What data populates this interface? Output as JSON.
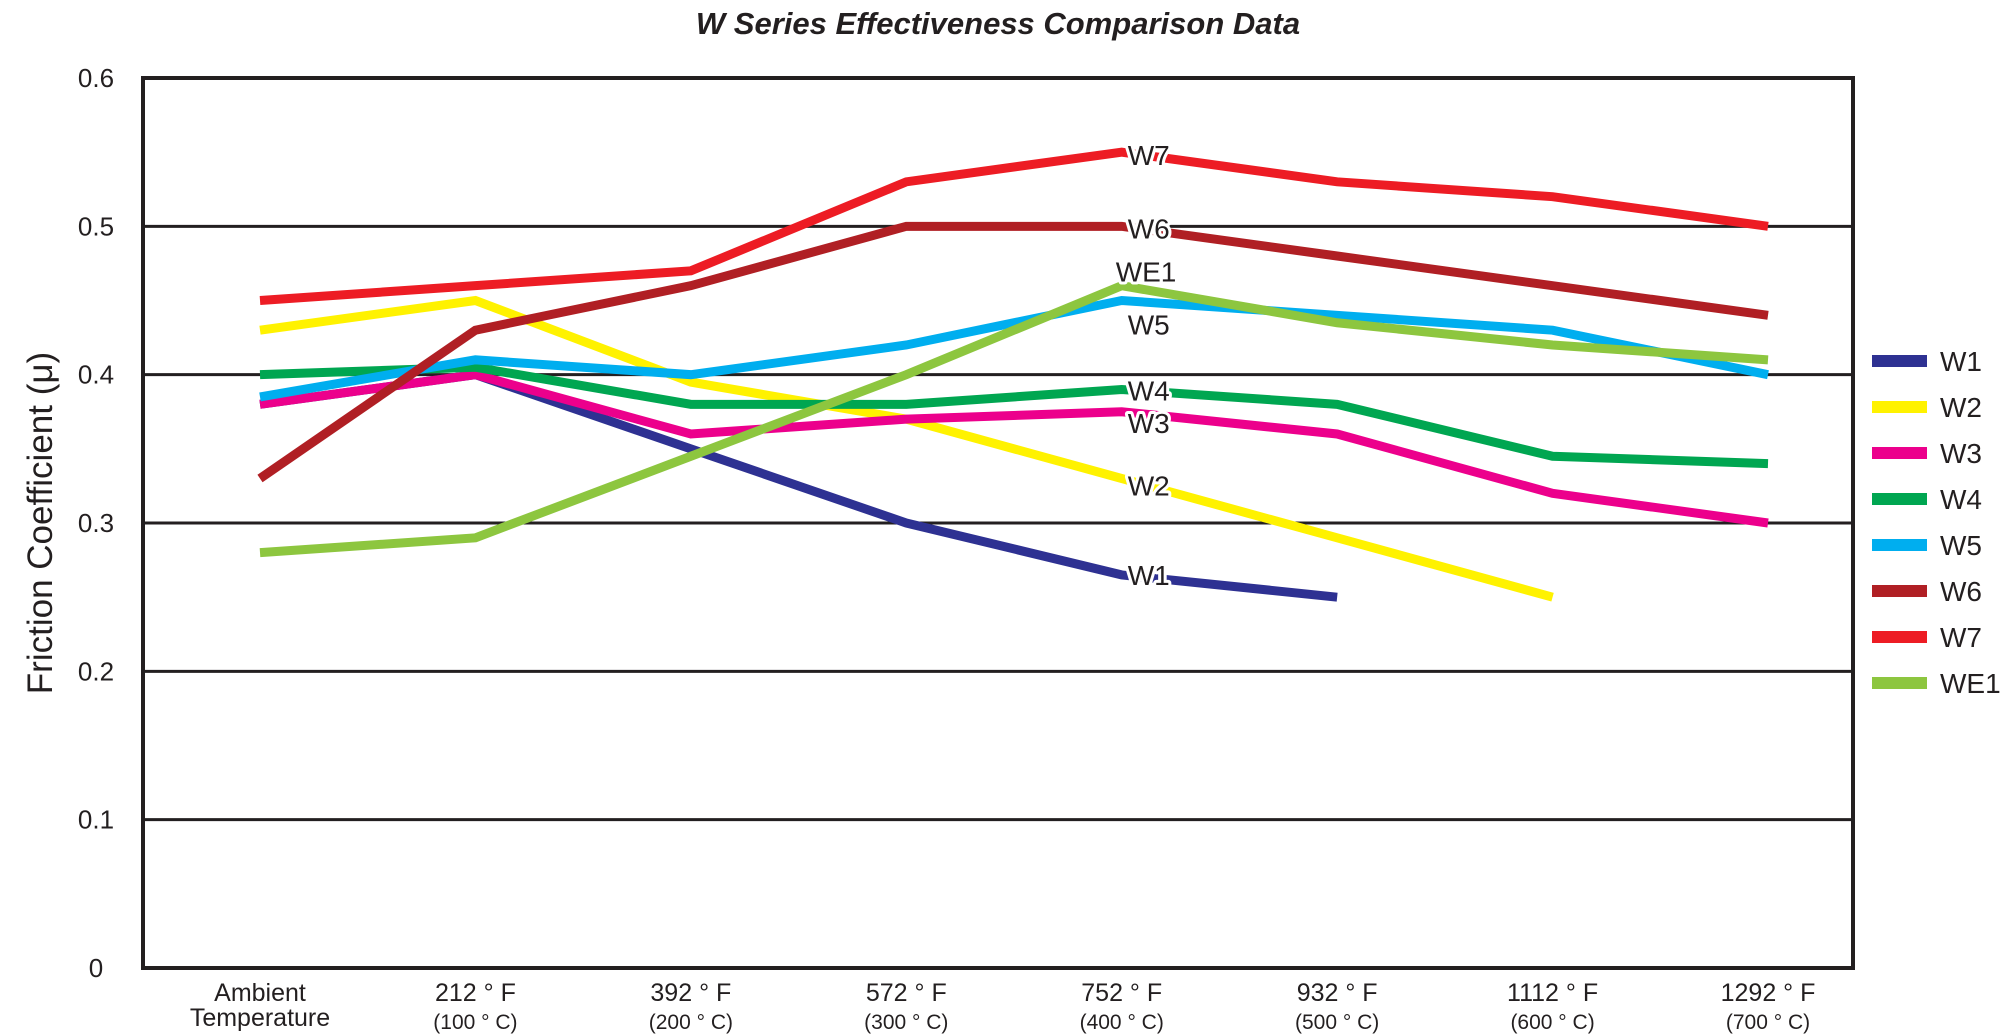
{
  "title": "W Series Effectiveness Comparison Data",
  "y_axis": {
    "title": "Friction Coefficient (μ)",
    "tick_labels": [
      "0.6",
      "0.5",
      "0.4",
      "0.3",
      "0.2",
      "0.1",
      "0"
    ],
    "tick_values": [
      0.6,
      0.5,
      0.4,
      0.3,
      0.2,
      0.1,
      0
    ]
  },
  "x_axis": {
    "categories": [
      {
        "line1": "Ambient",
        "line2": "Temperature",
        "line2_small": false
      },
      {
        "line1": "212 ° F",
        "line2": "(100 ° C)",
        "line2_small": true
      },
      {
        "line1": "392 ° F",
        "line2": "(200 ° C)",
        "line2_small": true
      },
      {
        "line1": "572 ° F",
        "line2": "(300 ° C)",
        "line2_small": true
      },
      {
        "line1": "752 ° F",
        "line2": "(400 ° C)",
        "line2_small": true
      },
      {
        "line1": "932 ° F",
        "line2": "(500 ° C)",
        "line2_small": true
      },
      {
        "line1": "1112 ° F",
        "line2": "(600 ° C)",
        "line2_small": true
      },
      {
        "line1": "1292 ° F",
        "line2": "(700 ° C)",
        "line2_small": true
      }
    ]
  },
  "chart_data": {
    "type": "line",
    "title": "W Series Effectiveness Comparison Data",
    "xlabel": "Temperature",
    "ylabel": "Friction Coefficient (μ)",
    "ylim": [
      0,
      0.6
    ],
    "grid": "horizontal",
    "legend_position": "right",
    "categories": [
      "Ambient Temperature",
      "212 °F (100 °C)",
      "392 °F (200 °C)",
      "572 °F (300 °C)",
      "752 °F (400 °C)",
      "932 °F (500 °C)",
      "1112 °F (600 °C)",
      "1292 °F (700 °C)"
    ],
    "series": [
      {
        "name": "W1",
        "color": "#2E3192",
        "values": [
          0.38,
          0.4,
          0.35,
          0.3,
          0.265,
          0.25,
          null,
          null
        ]
      },
      {
        "name": "W2",
        "color": "#FFF200",
        "values": [
          0.43,
          0.45,
          0.395,
          0.37,
          0.33,
          0.29,
          0.25,
          null
        ]
      },
      {
        "name": "W3",
        "color": "#EC008C",
        "values": [
          0.38,
          0.4,
          0.36,
          0.37,
          0.375,
          0.36,
          0.32,
          0.3
        ]
      },
      {
        "name": "W4",
        "color": "#00A651",
        "values": [
          0.4,
          0.405,
          0.38,
          0.38,
          0.39,
          0.38,
          0.345,
          0.34
        ]
      },
      {
        "name": "W5",
        "color": "#00AEEF",
        "values": [
          0.385,
          0.41,
          0.4,
          0.42,
          0.45,
          0.44,
          0.43,
          0.4
        ]
      },
      {
        "name": "W6",
        "color": "#B01F24",
        "values": [
          0.33,
          0.43,
          0.46,
          0.5,
          0.5,
          0.48,
          0.46,
          0.44
        ]
      },
      {
        "name": "W7",
        "color": "#ED1C24",
        "values": [
          0.45,
          0.46,
          0.47,
          0.53,
          0.55,
          0.53,
          0.52,
          0.5
        ]
      },
      {
        "name": "WE1",
        "color": "#8DC63F",
        "values": [
          0.28,
          0.29,
          0.345,
          0.4,
          0.46,
          0.435,
          0.42,
          0.41
        ]
      }
    ]
  },
  "legend": {
    "items": [
      "W1",
      "W2",
      "W3",
      "W4",
      "W5",
      "W6",
      "W7",
      "WE1"
    ]
  }
}
